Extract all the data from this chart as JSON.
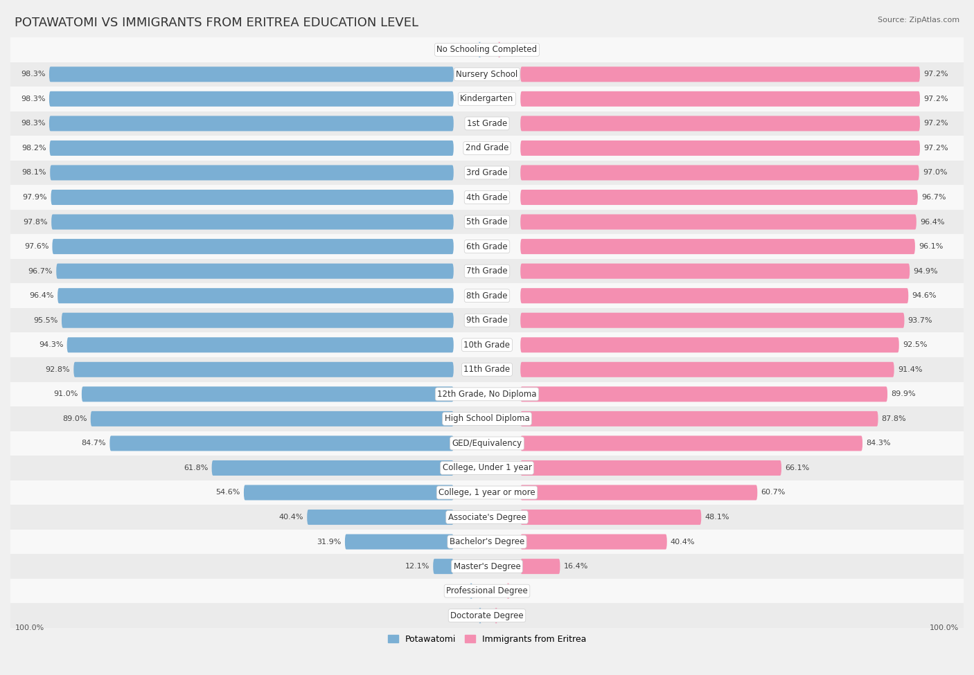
{
  "title": "POTAWATOMI VS IMMIGRANTS FROM ERITREA EDUCATION LEVEL",
  "source": "Source: ZipAtlas.com",
  "categories": [
    "No Schooling Completed",
    "Nursery School",
    "Kindergarten",
    "1st Grade",
    "2nd Grade",
    "3rd Grade",
    "4th Grade",
    "5th Grade",
    "6th Grade",
    "7th Grade",
    "8th Grade",
    "9th Grade",
    "10th Grade",
    "11th Grade",
    "12th Grade, No Diploma",
    "High School Diploma",
    "GED/Equivalency",
    "College, Under 1 year",
    "College, 1 year or more",
    "Associate's Degree",
    "Bachelor's Degree",
    "Master's Degree",
    "Professional Degree",
    "Doctorate Degree"
  ],
  "potawatomi": [
    1.7,
    98.3,
    98.3,
    98.3,
    98.2,
    98.1,
    97.9,
    97.8,
    97.6,
    96.7,
    96.4,
    95.5,
    94.3,
    92.8,
    91.0,
    89.0,
    84.7,
    61.8,
    54.6,
    40.4,
    31.9,
    12.1,
    3.6,
    1.6
  ],
  "eritrea": [
    2.8,
    97.2,
    97.2,
    97.2,
    97.2,
    97.0,
    96.7,
    96.4,
    96.1,
    94.9,
    94.6,
    93.7,
    92.5,
    91.4,
    89.9,
    87.8,
    84.3,
    66.1,
    60.7,
    48.1,
    40.4,
    16.4,
    4.8,
    2.1
  ],
  "potawatomi_color": "#7bafd4",
  "eritrea_color": "#f48fb1",
  "background_color": "#f0f0f0",
  "row_light": "#f8f8f8",
  "row_dark": "#ebebeb",
  "title_fontsize": 13,
  "label_fontsize": 8.5,
  "value_fontsize": 8.0,
  "legend_fontsize": 9,
  "source_fontsize": 8
}
